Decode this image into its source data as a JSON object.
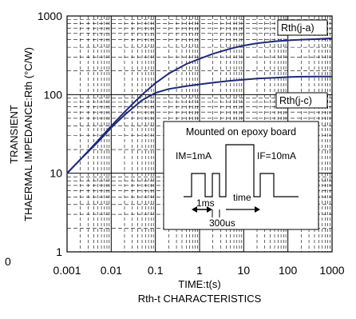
{
  "chart_data": {
    "type": "line",
    "title": "",
    "subtitle": "Rth-t CHARACTERISTICS",
    "xlabel": "TIME:t(s)",
    "ylabel_lines": [
      "TRANSIENT",
      "THAERMAL IMPEDANCE:Rth (°C/W)"
    ],
    "xscale": "log",
    "yscale": "log",
    "xlim": [
      0.001,
      1000
    ],
    "ylim": [
      1,
      1000
    ],
    "x_ticks": [
      {
        "value": 0.001,
        "label": "0.001"
      },
      {
        "value": 0.01,
        "label": "0.01"
      },
      {
        "value": 0.1,
        "label": "0.1"
      },
      {
        "value": 1,
        "label": "1"
      },
      {
        "value": 10,
        "label": "10"
      },
      {
        "value": 100,
        "label": "100"
      },
      {
        "value": 1000,
        "label": "1000"
      }
    ],
    "y_ticks": [
      {
        "value": 1,
        "label": "1"
      },
      {
        "value": 10,
        "label": "10"
      },
      {
        "value": 100,
        "label": "100"
      },
      {
        "value": 1000,
        "label": "1000"
      }
    ],
    "stray_label": "0",
    "grid": true,
    "series": [
      {
        "name": "Rth(j-a)",
        "color": "#1f2a78",
        "x": [
          0.001,
          0.002,
          0.005,
          0.01,
          0.02,
          0.05,
          0.1,
          0.2,
          0.5,
          1,
          2,
          5,
          10,
          20,
          50,
          100,
          200,
          500,
          1000
        ],
        "y": [
          10,
          15,
          26,
          40,
          60,
          100,
          140,
          185,
          245,
          285,
          330,
          385,
          420,
          450,
          475,
          490,
          500,
          510,
          520
        ]
      },
      {
        "name": "Rth(j-c)",
        "color": "#1f2a78",
        "x": [
          0.001,
          0.002,
          0.005,
          0.01,
          0.02,
          0.05,
          0.1,
          0.2,
          0.5,
          1,
          2,
          5,
          10,
          20,
          50,
          100,
          200,
          500,
          1000
        ],
        "y": [
          10,
          15,
          25,
          38,
          55,
          85,
          105,
          118,
          128,
          135,
          142,
          150,
          155,
          160,
          164,
          167,
          169,
          170,
          170
        ]
      }
    ],
    "inset": {
      "title": "Mounted on epoxy board",
      "labels": {
        "im": "IM=1mA",
        "if": "IF=10mA",
        "t1": "1ms",
        "time": "time",
        "t2": "300us"
      }
    }
  }
}
